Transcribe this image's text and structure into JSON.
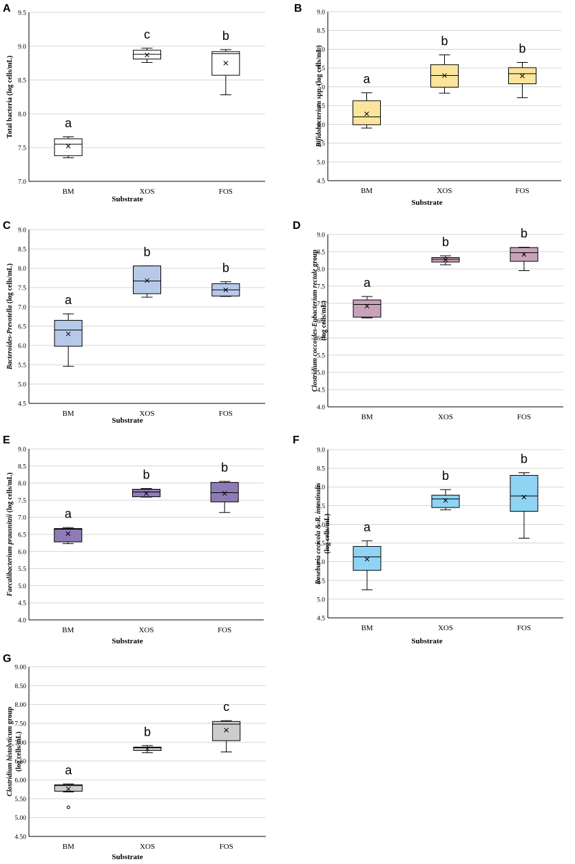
{
  "chart_data": [
    {
      "panel": "A",
      "type": "boxplot",
      "xlabel": "Substrate",
      "ylabel": [
        {
          "text": "Total bacteria (log cells/mL)",
          "italic": false
        }
      ],
      "ylim": [
        7.0,
        9.5
      ],
      "yticks": [
        "7.0",
        "7.5",
        "8.0",
        "8.5",
        "9.0",
        "9.5"
      ],
      "box_color": "#ffffff",
      "categories": [
        "BM",
        "XOS",
        "FOS"
      ],
      "boxes": [
        {
          "min": 7.35,
          "q1": 7.38,
          "median": 7.55,
          "q3": 7.63,
          "max": 7.66,
          "mean": 7.52,
          "letter": "a",
          "outliers": []
        },
        {
          "min": 8.76,
          "q1": 8.81,
          "median": 8.88,
          "q3": 8.94,
          "max": 8.97,
          "mean": 8.87,
          "letter": "c",
          "outliers": []
        },
        {
          "min": 8.28,
          "q1": 8.57,
          "median": 8.89,
          "q3": 8.92,
          "max": 8.95,
          "mean": 8.75,
          "letter": "b",
          "outliers": []
        }
      ]
    },
    {
      "panel": "B",
      "type": "boxplot",
      "xlabel": "Substrate",
      "ylabel": [
        {
          "text": "Bifidobacterium",
          "italic": true
        },
        {
          "text": " spp. (log cells/mL)",
          "italic": false
        }
      ],
      "ylim": [
        4.5,
        9.0
      ],
      "yticks": [
        "4.5",
        "5.0",
        "5.5",
        "6.0",
        "6.5",
        "7.0",
        "7.5",
        "8.0",
        "8.5",
        "9.0"
      ],
      "box_color": "#fbe59c",
      "categories": [
        "BM",
        "XOS",
        "FOS"
      ],
      "boxes": [
        {
          "min": 5.9,
          "q1": 5.99,
          "median": 6.2,
          "q3": 6.63,
          "max": 6.84,
          "mean": 6.28,
          "letter": "a",
          "outliers": []
        },
        {
          "min": 6.83,
          "q1": 6.99,
          "median": 7.3,
          "q3": 7.59,
          "max": 7.85,
          "mean": 7.3,
          "letter": "b",
          "outliers": []
        },
        {
          "min": 6.71,
          "q1": 7.08,
          "median": 7.35,
          "q3": 7.51,
          "max": 7.65,
          "mean": 7.29,
          "letter": "b",
          "outliers": []
        }
      ]
    },
    {
      "panel": "C",
      "type": "boxplot",
      "xlabel": "Substrate",
      "ylabel": [
        {
          "text": "Bacteroides-Prevotella",
          "italic": true
        },
        {
          "text": " (log cells/mL)",
          "italic": false
        }
      ],
      "ylim": [
        4.5,
        9.0
      ],
      "yticks": [
        "4.5",
        "5.0",
        "5.5",
        "6.0",
        "6.5",
        "7.0",
        "7.5",
        "8.0",
        "8.5",
        "9.0"
      ],
      "box_color": "#b7c9e8",
      "categories": [
        "BM",
        "XOS",
        "FOS"
      ],
      "boxes": [
        {
          "min": 5.46,
          "q1": 5.98,
          "median": 6.4,
          "q3": 6.65,
          "max": 6.82,
          "mean": 6.3,
          "letter": "a",
          "outliers": []
        },
        {
          "min": 7.25,
          "q1": 7.34,
          "median": 7.67,
          "q3": 8.06,
          "max": 8.06,
          "mean": 7.68,
          "letter": "b",
          "outliers": []
        },
        {
          "min": 7.27,
          "q1": 7.28,
          "median": 7.44,
          "q3": 7.6,
          "max": 7.65,
          "mean": 7.44,
          "letter": "b",
          "outliers": []
        }
      ]
    },
    {
      "panel": "D",
      "type": "boxplot",
      "xlabel": "",
      "ylabel": [
        {
          "text": "Clostridium coccoides-Eubacterium rectale",
          "italic": true
        },
        {
          "text": " group",
          "italic": false
        }
      ],
      "ylabel2": "(log cells/mL)",
      "ylim": [
        4.0,
        9.0
      ],
      "yticks": [
        "4.0",
        "4.5",
        "5.0",
        "5.5",
        "6.0",
        "6.5",
        "7.0",
        "7.5",
        "8.0",
        "8.5",
        "9.0"
      ],
      "box_color": "#c8a2b9",
      "categories": [
        "BM",
        "XOS",
        "FOS"
      ],
      "boxes": [
        {
          "min": 6.58,
          "q1": 6.6,
          "median": 6.97,
          "q3": 7.1,
          "max": 7.2,
          "mean": 6.92,
          "letter": "a",
          "outliers": []
        },
        {
          "min": 8.12,
          "q1": 8.2,
          "median": 8.28,
          "q3": 8.33,
          "max": 8.38,
          "mean": 8.27,
          "letter": "b",
          "outliers": []
        },
        {
          "min": 7.95,
          "q1": 8.22,
          "median": 8.47,
          "q3": 8.62,
          "max": 8.63,
          "mean": 8.42,
          "letter": "b",
          "outliers": []
        }
      ]
    },
    {
      "panel": "E",
      "type": "boxplot",
      "xlabel": "Substrate",
      "ylabel": [
        {
          "text": "Faecalibacterium prausnitzii",
          "italic": true
        },
        {
          "text": " (log cells/mL)",
          "italic": false
        }
      ],
      "ylim": [
        4.0,
        9.0
      ],
      "yticks": [
        "4.0",
        "4.5",
        "5.0",
        "5.5",
        "6.0",
        "6.5",
        "7.0",
        "7.5",
        "8.0",
        "8.5",
        "9.0"
      ],
      "box_color": "#8e7bb5",
      "categories": [
        "BM",
        "XOS",
        "FOS"
      ],
      "boxes": [
        {
          "min": 6.23,
          "q1": 6.28,
          "median": 6.65,
          "q3": 6.67,
          "max": 6.7,
          "mean": 6.52,
          "letter": "a",
          "outliers": []
        },
        {
          "min": 7.59,
          "q1": 7.6,
          "median": 7.74,
          "q3": 7.82,
          "max": 7.84,
          "mean": 7.7,
          "letter": "b",
          "outliers": []
        },
        {
          "min": 7.14,
          "q1": 7.45,
          "median": 7.72,
          "q3": 8.02,
          "max": 8.05,
          "mean": 7.7,
          "letter": "b",
          "outliers": []
        }
      ]
    },
    {
      "panel": "F",
      "type": "boxplot",
      "xlabel": "Substrate",
      "ylabel": [
        {
          "text": "Roseburia cecicola & R. intestinalis",
          "italic": true
        }
      ],
      "ylabel2": "(log cells/mL)",
      "ylim": [
        4.5,
        9.0
      ],
      "yticks": [
        "4.5",
        "5.0",
        "5.5",
        "6.0",
        "6.5",
        "7.0",
        "7.5",
        "8.0",
        "8.5",
        "9.0"
      ],
      "box_color": "#8fd5f3",
      "categories": [
        "BM",
        "XOS",
        "FOS"
      ],
      "boxes": [
        {
          "min": 5.25,
          "q1": 5.77,
          "median": 6.13,
          "q3": 6.41,
          "max": 6.56,
          "mean": 6.07,
          "letter": "a",
          "outliers": []
        },
        {
          "min": 7.39,
          "q1": 7.45,
          "median": 7.68,
          "q3": 7.78,
          "max": 7.93,
          "mean": 7.64,
          "letter": "b",
          "outliers": []
        },
        {
          "min": 6.63,
          "q1": 7.35,
          "median": 7.76,
          "q3": 8.31,
          "max": 8.38,
          "mean": 7.73,
          "letter": "b",
          "outliers": []
        }
      ]
    },
    {
      "panel": "G",
      "type": "boxplot",
      "xlabel": "Substrate",
      "ylabel": [
        {
          "text": "Clostridium histolyticum",
          "italic": true
        },
        {
          "text": " group",
          "italic": false
        }
      ],
      "ylabel2": "(log cells/mL)",
      "ylim": [
        4.5,
        9.0
      ],
      "yticks": [
        "4.50",
        "5.00",
        "5.50",
        "6.00",
        "6.50",
        "7.00",
        "7.50",
        "8.00",
        "8.50",
        "9.00"
      ],
      "box_color": "#cccccc",
      "categories": [
        "BM",
        "XOS",
        "FOS"
      ],
      "boxes": [
        {
          "min": 5.68,
          "q1": 5.7,
          "median": 5.85,
          "q3": 5.87,
          "max": 5.89,
          "mean": 5.76,
          "letter": "a",
          "outliers": [
            5.27
          ]
        },
        {
          "min": 6.72,
          "q1": 6.78,
          "median": 6.85,
          "q3": 6.87,
          "max": 6.91,
          "mean": 6.82,
          "letter": "b",
          "outliers": []
        },
        {
          "min": 6.74,
          "q1": 7.04,
          "median": 7.48,
          "q3": 7.55,
          "max": 7.57,
          "mean": 7.32,
          "letter": "c",
          "outliers": []
        }
      ]
    }
  ]
}
